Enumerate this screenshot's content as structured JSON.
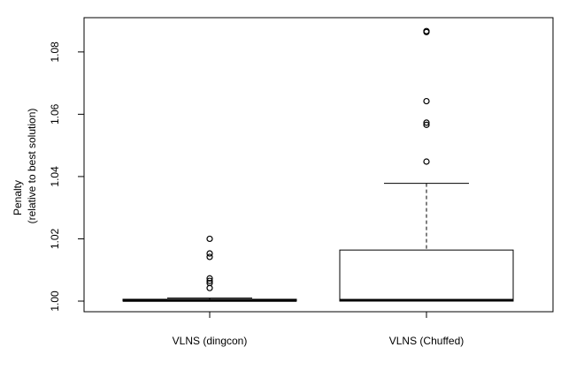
{
  "chart_data": {
    "type": "boxplot",
    "title": "",
    "xlabel": "",
    "ylabel": "Penalty",
    "ylabel_sub": "(relative to best solution)",
    "ylim": [
      0.997,
      1.0925
    ],
    "yticks": [
      1.0,
      1.02,
      1.04,
      1.06,
      1.08
    ],
    "ytick_labels": [
      "1.00",
      "1.02",
      "1.04",
      "1.06",
      "1.08"
    ],
    "categories": [
      "VLNS (dingcon)",
      "VLNS (Chuffed)"
    ],
    "boxes": [
      {
        "name": "VLNS (dingcon)",
        "whisker_low": 1.0,
        "q1": 1.0,
        "median": 1.0002,
        "q3": 1.0006,
        "whisker_high": 1.001,
        "outliers": [
          1.02,
          1.0153,
          1.0142,
          1.0073,
          1.0065,
          1.0058,
          1.0042
        ]
      },
      {
        "name": "VLNS (Chuffed)",
        "whisker_low": 1.0,
        "q1": 1.0,
        "median": 1.0003,
        "q3": 1.0164,
        "whisker_high": 1.0378,
        "outliers": [
          1.0867,
          1.0864,
          1.0642,
          1.0573,
          1.0566,
          1.0448
        ]
      }
    ],
    "grid": false,
    "legend": "none"
  }
}
